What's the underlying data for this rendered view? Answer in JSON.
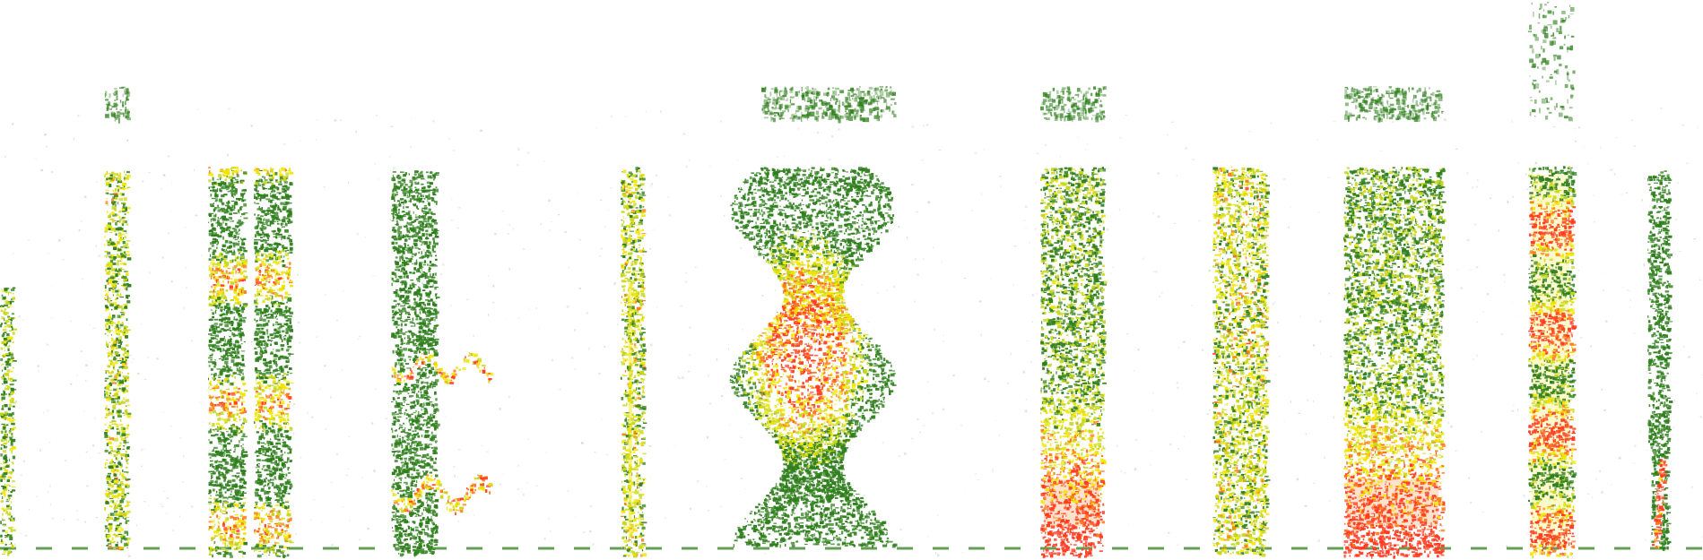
{
  "image": {
    "background": "#ffffff",
    "palette": {
      "low": "#2f7f1c",
      "mid": "#c7d61b",
      "high": "#f2e600",
      "hot": "#ff7a1a",
      "peak": "#ff3b1f"
    },
    "segments": 15
  }
}
